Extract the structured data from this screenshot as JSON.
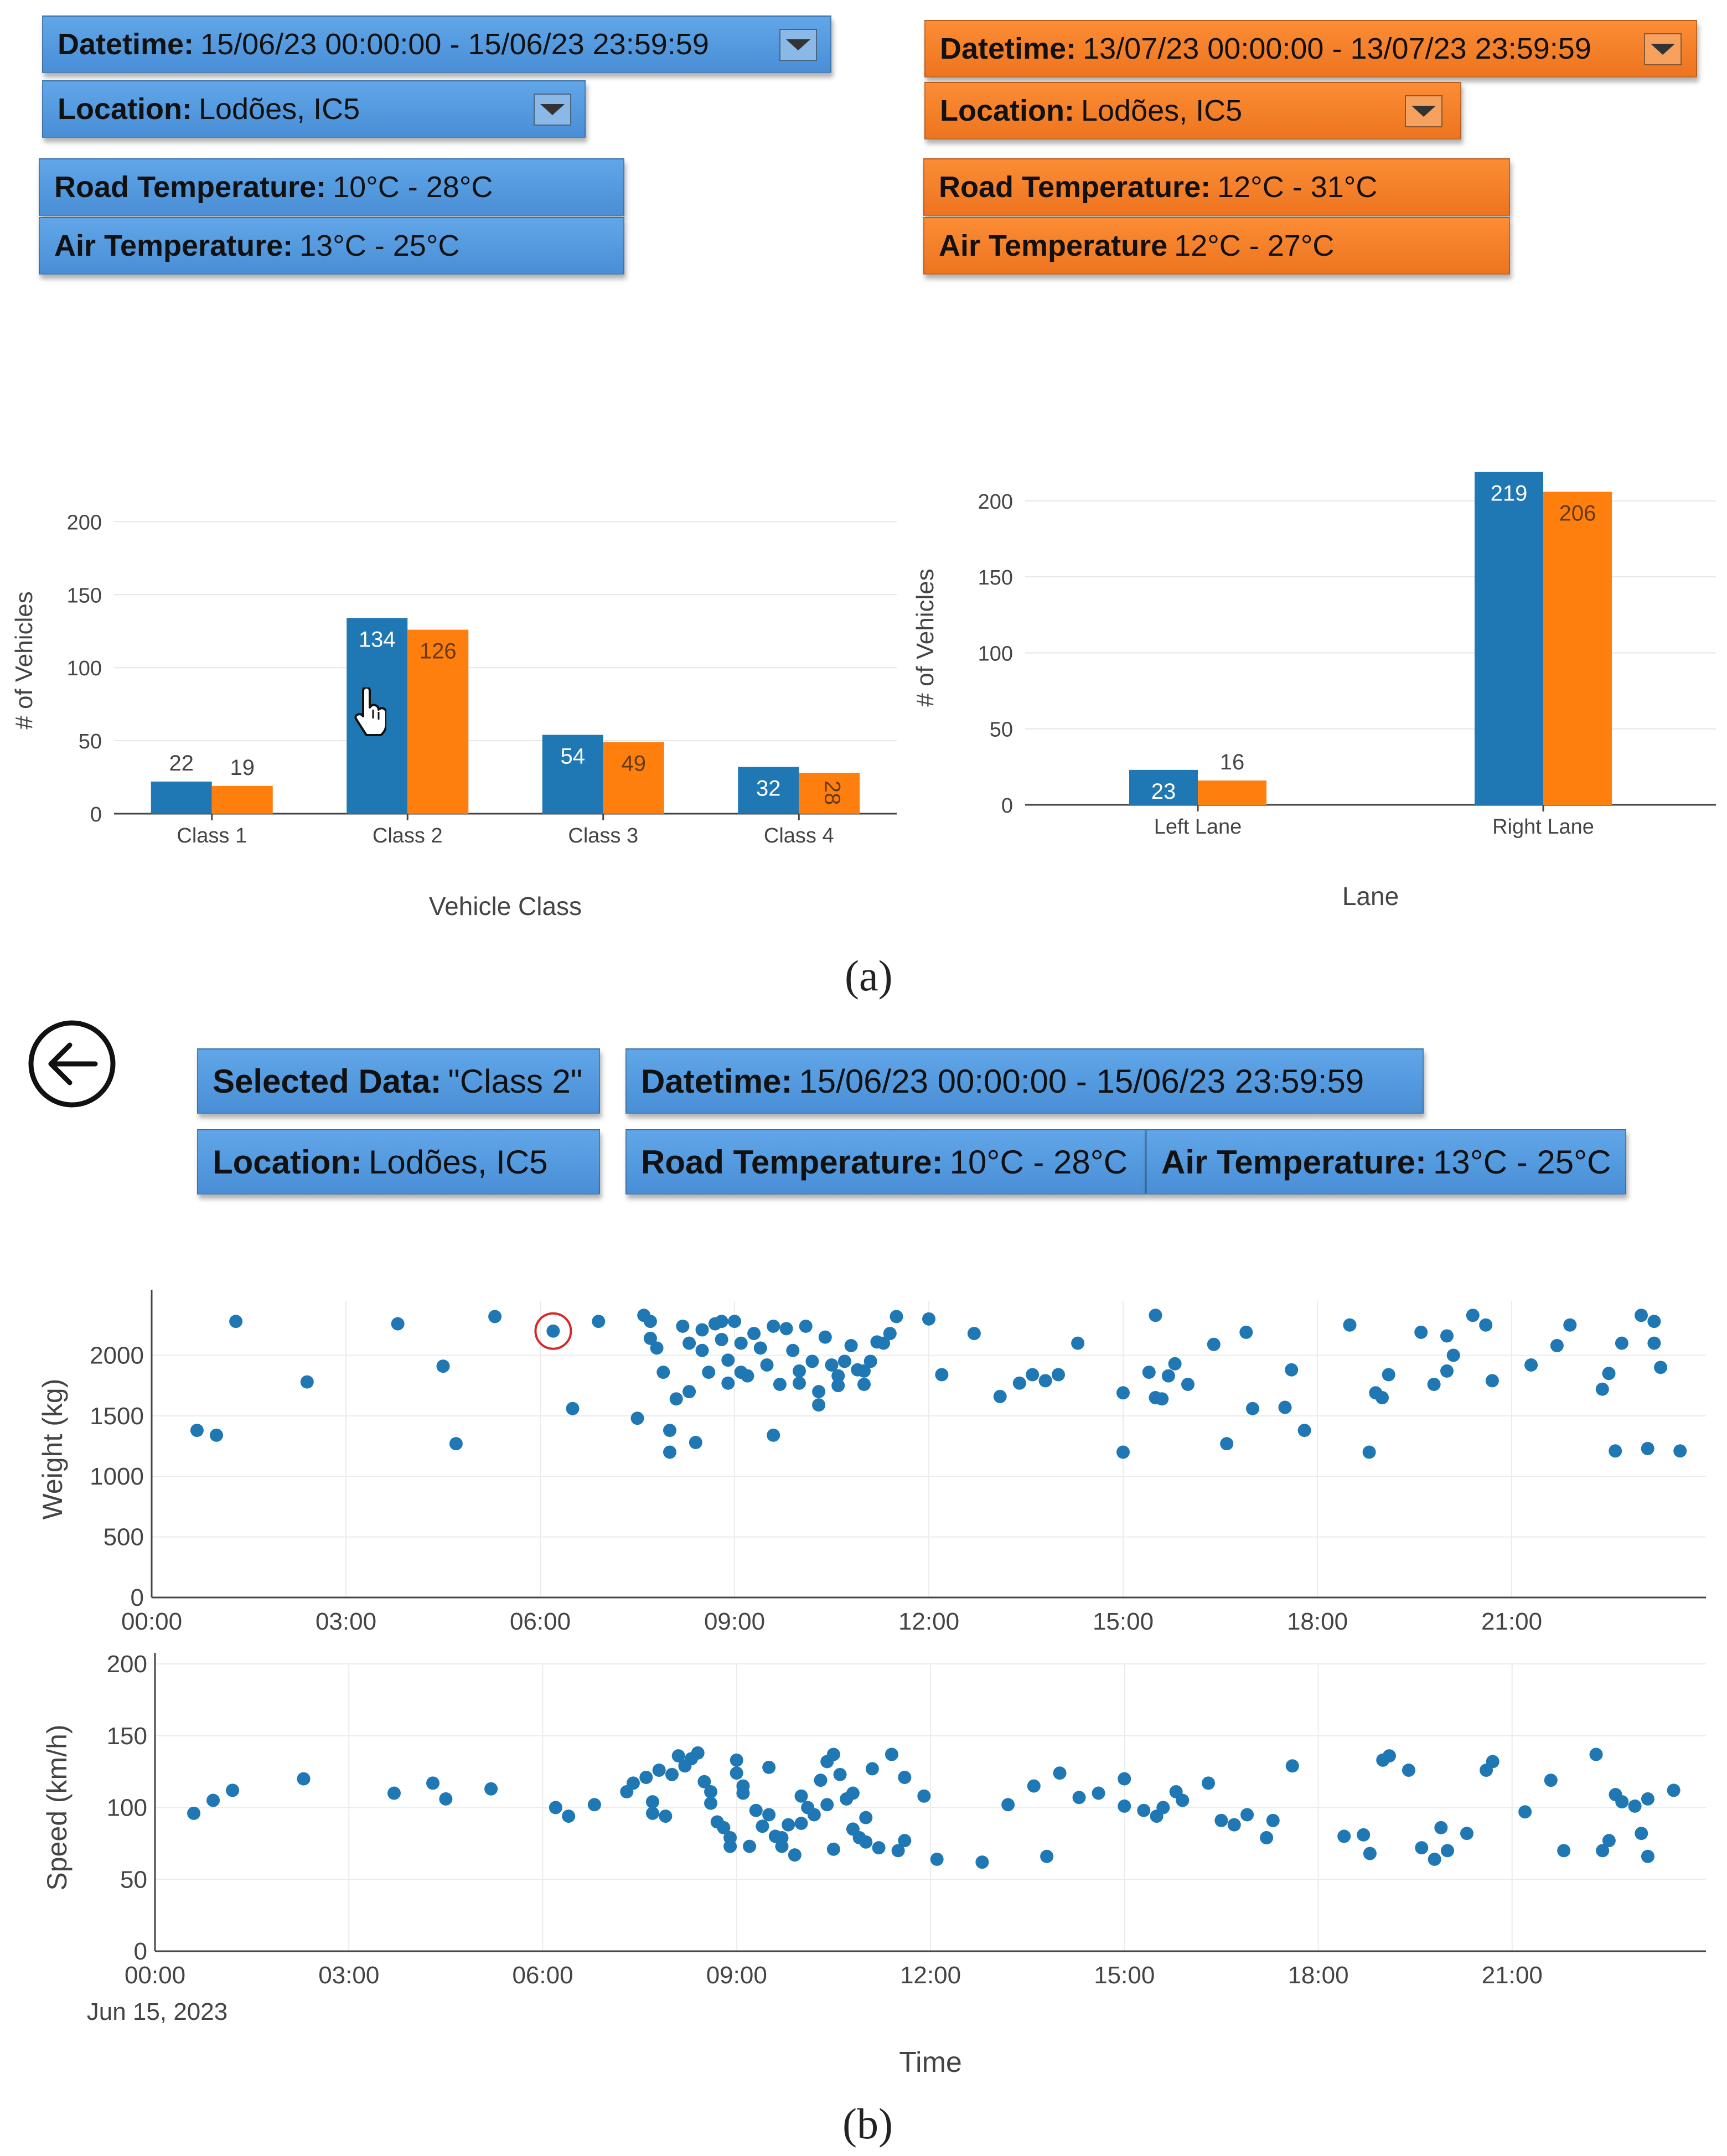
{
  "panel_a": {
    "left": {
      "datetime_label": "Datetime:",
      "datetime_value": "15/06/23 00:00:00 - 15/06/23 23:59:59",
      "location_label": "Location:",
      "location_value": "Lodões, IC5",
      "road_temp_label": "Road Temperature:",
      "road_temp_value": "10°C - 28°C",
      "air_temp_label": "Air Temperature:",
      "air_temp_value": "13°C - 25°C",
      "color": "#4a8fd6"
    },
    "right": {
      "datetime_label": "Datetime:",
      "datetime_value": "13/07/23 00:00:00 - 13/07/23 23:59:59",
      "location_label": "Location:",
      "location_value": "Lodões, IC5",
      "road_temp_label": "Road Temperature:",
      "road_temp_value": "12°C - 31°C",
      "air_temp_label": "Air Temperature",
      "air_temp_value": "12°C - 27°C",
      "color": "#ee7420"
    },
    "caption": "(a)"
  },
  "panel_b": {
    "selected_label": "Selected Data:",
    "selected_value": "\"Class 2\"",
    "datetime_label": "Datetime:",
    "datetime_value": "15/06/23 00:00:00 - 15/06/23 23:59:59",
    "location_label": "Location:",
    "location_value": "Lodões, IC5",
    "road_temp_label": "Road Temperature:",
    "road_temp_value": "10°C - 28°C",
    "air_temp_label": "Air Temperature:",
    "air_temp_value": "13°C - 25°C",
    "back_icon": "back-arrow-icon",
    "caption": "(b)"
  },
  "colors": {
    "series_a": "#1f77b4",
    "series_b": "#ff7f0e",
    "highlight": "#d62728"
  },
  "chart_data": [
    {
      "type": "bar",
      "id": "vehicle-class",
      "categories": [
        "Class 1",
        "Class 2",
        "Class 3",
        "Class 4"
      ],
      "series": [
        {
          "name": "15/06/23",
          "values": [
            22,
            134,
            54,
            32
          ]
        },
        {
          "name": "13/07/23",
          "values": [
            19,
            126,
            49,
            28
          ]
        }
      ],
      "xlabel": "Vehicle Class",
      "ylabel": "# of Vehicles",
      "yticks": [
        0,
        50,
        100,
        150,
        200
      ],
      "ylim": [
        0,
        210
      ]
    },
    {
      "type": "bar",
      "id": "lane",
      "categories": [
        "Left Lane",
        "Right Lane"
      ],
      "series": [
        {
          "name": "15/06/23",
          "values": [
            23,
            219
          ]
        },
        {
          "name": "13/07/23",
          "values": [
            16,
            206
          ]
        }
      ],
      "xlabel": "Lane",
      "ylabel": "# of Vehicles",
      "yticks": [
        0,
        50,
        100,
        150,
        200
      ],
      "ylim": [
        0,
        220
      ]
    },
    {
      "type": "scatter",
      "id": "weight",
      "ylabel": "Weight (kg)",
      "xticks": [
        "00:00",
        "03:00",
        "06:00",
        "09:00",
        "12:00",
        "15:00",
        "18:00",
        "21:00"
      ],
      "yticks": [
        0,
        500,
        1000,
        1500,
        2000
      ],
      "xlim": [
        0,
        24
      ],
      "ylim": [
        0,
        2450
      ],
      "highlighted_point": [
        6.2,
        2200
      ],
      "points": [
        [
          0.7,
          1380
        ],
        [
          1.0,
          1340
        ],
        [
          1.3,
          2280
        ],
        [
          2.4,
          1780
        ],
        [
          3.8,
          2260
        ],
        [
          4.5,
          1910
        ],
        [
          4.7,
          1270
        ],
        [
          5.3,
          2320
        ],
        [
          6.2,
          2200
        ],
        [
          6.5,
          1560
        ],
        [
          6.9,
          2280
        ],
        [
          7.5,
          1480
        ],
        [
          7.6,
          2330
        ],
        [
          7.7,
          2280
        ],
        [
          7.7,
          2140
        ],
        [
          7.8,
          2060
        ],
        [
          7.9,
          1860
        ],
        [
          8.0,
          1380
        ],
        [
          8.0,
          1200
        ],
        [
          8.1,
          1640
        ],
        [
          8.2,
          2240
        ],
        [
          8.3,
          2100
        ],
        [
          8.3,
          1700
        ],
        [
          8.4,
          1280
        ],
        [
          8.5,
          2210
        ],
        [
          8.5,
          2040
        ],
        [
          8.6,
          1860
        ],
        [
          8.7,
          2260
        ],
        [
          8.8,
          2280
        ],
        [
          8.8,
          2130
        ],
        [
          8.9,
          1960
        ],
        [
          8.9,
          1770
        ],
        [
          9.0,
          2280
        ],
        [
          9.1,
          2100
        ],
        [
          9.1,
          1860
        ],
        [
          9.2,
          1830
        ],
        [
          9.3,
          2180
        ],
        [
          9.4,
          2060
        ],
        [
          9.5,
          1920
        ],
        [
          9.6,
          2240
        ],
        [
          9.6,
          1340
        ],
        [
          9.7,
          1760
        ],
        [
          9.8,
          2220
        ],
        [
          9.9,
          2040
        ],
        [
          10.0,
          1870
        ],
        [
          10.0,
          1770
        ],
        [
          10.1,
          2240
        ],
        [
          10.2,
          1950
        ],
        [
          10.3,
          1700
        ],
        [
          10.3,
          1590
        ],
        [
          10.4,
          2150
        ],
        [
          10.5,
          1920
        ],
        [
          10.6,
          1830
        ],
        [
          10.6,
          1750
        ],
        [
          10.7,
          1950
        ],
        [
          10.8,
          2080
        ],
        [
          10.9,
          1880
        ],
        [
          11.0,
          1760
        ],
        [
          11.0,
          1870
        ],
        [
          11.1,
          1950
        ],
        [
          11.2,
          2110
        ],
        [
          11.3,
          2100
        ],
        [
          11.4,
          2180
        ],
        [
          11.5,
          2320
        ],
        [
          12.0,
          2300
        ],
        [
          12.2,
          1840
        ],
        [
          12.7,
          2180
        ],
        [
          13.1,
          1660
        ],
        [
          13.4,
          1770
        ],
        [
          13.6,
          1840
        ],
        [
          13.8,
          1790
        ],
        [
          14.0,
          1840
        ],
        [
          14.3,
          2100
        ],
        [
          15.0,
          1690
        ],
        [
          15.0,
          1200
        ],
        [
          15.4,
          1860
        ],
        [
          15.5,
          2330
        ],
        [
          15.5,
          1650
        ],
        [
          15.6,
          1640
        ],
        [
          15.7,
          1830
        ],
        [
          15.8,
          1930
        ],
        [
          16.0,
          1760
        ],
        [
          16.4,
          2090
        ],
        [
          16.6,
          1270
        ],
        [
          16.9,
          2190
        ],
        [
          17.0,
          1560
        ],
        [
          17.5,
          1570
        ],
        [
          17.6,
          1880
        ],
        [
          17.8,
          1380
        ],
        [
          18.5,
          2250
        ],
        [
          18.8,
          1200
        ],
        [
          18.9,
          1690
        ],
        [
          19.0,
          1650
        ],
        [
          19.1,
          1840
        ],
        [
          19.6,
          2190
        ],
        [
          19.8,
          1760
        ],
        [
          20.0,
          2160
        ],
        [
          20.0,
          1870
        ],
        [
          20.1,
          2000
        ],
        [
          20.4,
          2330
        ],
        [
          20.6,
          2250
        ],
        [
          20.7,
          1790
        ],
        [
          21.3,
          1920
        ],
        [
          21.7,
          2080
        ],
        [
          21.9,
          2250
        ],
        [
          22.4,
          1720
        ],
        [
          22.5,
          1850
        ],
        [
          22.6,
          1210
        ],
        [
          22.7,
          2100
        ],
        [
          23.0,
          2330
        ],
        [
          23.1,
          1230
        ],
        [
          23.2,
          2100
        ],
        [
          23.3,
          1900
        ],
        [
          23.6,
          1210
        ],
        [
          23.2,
          2280
        ]
      ]
    },
    {
      "type": "scatter",
      "id": "speed",
      "xlabel": "Time",
      "xsublabel": "Jun 15, 2023",
      "ylabel": "Speed (km/h)",
      "xticks": [
        "00:00",
        "03:00",
        "06:00",
        "09:00",
        "12:00",
        "15:00",
        "18:00",
        "21:00"
      ],
      "yticks": [
        0,
        50,
        100,
        150,
        200
      ],
      "xlim": [
        0,
        24
      ],
      "ylim": [
        0,
        200
      ],
      "points": [
        [
          0.6,
          96
        ],
        [
          0.9,
          105
        ],
        [
          1.2,
          112
        ],
        [
          2.3,
          120
        ],
        [
          3.7,
          110
        ],
        [
          4.3,
          117
        ],
        [
          4.5,
          106
        ],
        [
          5.2,
          113
        ],
        [
          6.2,
          100
        ],
        [
          6.4,
          94
        ],
        [
          6.8,
          102
        ],
        [
          7.3,
          111
        ],
        [
          7.4,
          117
        ],
        [
          7.6,
          121
        ],
        [
          7.7,
          104
        ],
        [
          7.7,
          96
        ],
        [
          7.8,
          126
        ],
        [
          7.9,
          94
        ],
        [
          8.0,
          123
        ],
        [
          8.1,
          136
        ],
        [
          8.2,
          129
        ],
        [
          8.3,
          134
        ],
        [
          8.4,
          138
        ],
        [
          8.5,
          118
        ],
        [
          8.6,
          111
        ],
        [
          8.6,
          103
        ],
        [
          8.7,
          90
        ],
        [
          8.8,
          86
        ],
        [
          8.9,
          79
        ],
        [
          8.9,
          73
        ],
        [
          9.0,
          133
        ],
        [
          9.0,
          124
        ],
        [
          9.1,
          115
        ],
        [
          9.1,
          110
        ],
        [
          9.2,
          73
        ],
        [
          9.3,
          98
        ],
        [
          9.4,
          87
        ],
        [
          9.5,
          128
        ],
        [
          9.5,
          95
        ],
        [
          9.6,
          80
        ],
        [
          9.7,
          79
        ],
        [
          9.7,
          73
        ],
        [
          9.8,
          88
        ],
        [
          9.9,
          67
        ],
        [
          10.0,
          108
        ],
        [
          10.0,
          89
        ],
        [
          10.1,
          100
        ],
        [
          10.2,
          95
        ],
        [
          10.3,
          119
        ],
        [
          10.4,
          132
        ],
        [
          10.4,
          102
        ],
        [
          10.5,
          137
        ],
        [
          10.5,
          71
        ],
        [
          10.6,
          123
        ],
        [
          10.7,
          106
        ],
        [
          10.8,
          85
        ],
        [
          10.8,
          110
        ],
        [
          10.9,
          79
        ],
        [
          11.0,
          93
        ],
        [
          11.0,
          76
        ],
        [
          11.1,
          127
        ],
        [
          11.2,
          72
        ],
        [
          11.4,
          137
        ],
        [
          11.5,
          70
        ],
        [
          11.6,
          77
        ],
        [
          11.6,
          121
        ],
        [
          11.9,
          108
        ],
        [
          12.1,
          64
        ],
        [
          12.8,
          62
        ],
        [
          13.2,
          102
        ],
        [
          13.6,
          115
        ],
        [
          13.8,
          66
        ],
        [
          14.0,
          124
        ],
        [
          14.3,
          107
        ],
        [
          14.6,
          110
        ],
        [
          15.0,
          120
        ],
        [
          15.0,
          101
        ],
        [
          15.3,
          98
        ],
        [
          15.5,
          94
        ],
        [
          15.6,
          100
        ],
        [
          15.8,
          111
        ],
        [
          15.9,
          105
        ],
        [
          16.3,
          117
        ],
        [
          16.5,
          91
        ],
        [
          16.7,
          88
        ],
        [
          16.9,
          95
        ],
        [
          17.2,
          79
        ],
        [
          17.3,
          91
        ],
        [
          17.6,
          129
        ],
        [
          18.4,
          80
        ],
        [
          18.7,
          81
        ],
        [
          18.8,
          68
        ],
        [
          19.0,
          133
        ],
        [
          19.1,
          136
        ],
        [
          19.4,
          126
        ],
        [
          19.6,
          72
        ],
        [
          19.8,
          64
        ],
        [
          19.9,
          86
        ],
        [
          20.0,
          70
        ],
        [
          20.3,
          82
        ],
        [
          20.6,
          126
        ],
        [
          20.7,
          132
        ],
        [
          21.2,
          97
        ],
        [
          21.6,
          119
        ],
        [
          21.8,
          70
        ],
        [
          22.3,
          137
        ],
        [
          22.4,
          70
        ],
        [
          22.5,
          77
        ],
        [
          22.6,
          109
        ],
        [
          22.9,
          101
        ],
        [
          23.0,
          82
        ],
        [
          23.1,
          106
        ],
        [
          23.1,
          66
        ],
        [
          23.5,
          112
        ],
        [
          22.7,
          104
        ]
      ]
    }
  ]
}
